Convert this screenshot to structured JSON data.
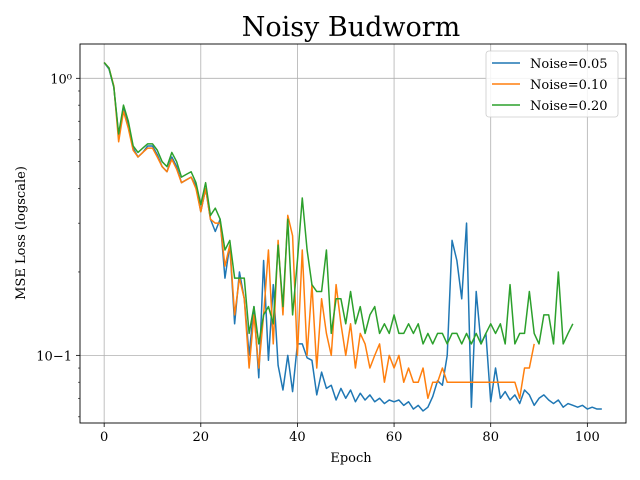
{
  "chart_data": {
    "type": "line",
    "title": "Noisy Budworm",
    "xlabel": "Epoch",
    "ylabel": "MSE Loss (logscale)",
    "yscale": "log",
    "xlim": [
      -5,
      108
    ],
    "ylim": [
      0.057,
      1.33
    ],
    "grid": true,
    "legend_position": "top-right",
    "xticks": [
      0,
      20,
      40,
      60,
      80,
      100
    ],
    "xtick_labels": [
      "0",
      "20",
      "40",
      "60",
      "80",
      "100"
    ],
    "yticks": [
      0.1,
      1.0
    ],
    "ytick_labels": [
      "10−1",
      "10⁰"
    ],
    "series": [
      {
        "name": "Noise=0.05",
        "color": "#1f77b4",
        "values": [
          1.14,
          1.08,
          0.93,
          0.62,
          0.79,
          0.68,
          0.56,
          0.52,
          0.54,
          0.57,
          0.57,
          0.53,
          0.48,
          0.46,
          0.52,
          0.48,
          0.42,
          0.43,
          0.44,
          0.41,
          0.33,
          0.4,
          0.31,
          0.28,
          0.31,
          0.19,
          0.25,
          0.13,
          0.2,
          0.16,
          0.1,
          0.15,
          0.083,
          0.22,
          0.096,
          0.18,
          0.092,
          0.075,
          0.1,
          0.074,
          0.11,
          0.11,
          0.098,
          0.096,
          0.072,
          0.087,
          0.076,
          0.078,
          0.069,
          0.076,
          0.07,
          0.075,
          0.068,
          0.073,
          0.069,
          0.072,
          0.068,
          0.07,
          0.067,
          0.069,
          0.068,
          0.069,
          0.066,
          0.068,
          0.064,
          0.066,
          0.063,
          0.065,
          0.071,
          0.081,
          0.078,
          0.1,
          0.26,
          0.22,
          0.16,
          0.3,
          0.065,
          0.17,
          0.11,
          0.12,
          0.068,
          0.09,
          0.07,
          0.074,
          0.069,
          0.072,
          0.067,
          0.075,
          0.072,
          0.066,
          0.07,
          0.072,
          0.069,
          0.067,
          0.069,
          0.065,
          0.067,
          0.066,
          0.065,
          0.066,
          0.064,
          0.065,
          0.064,
          0.064
        ]
      },
      {
        "name": "Noise=0.10",
        "color": "#ff7f0e",
        "values": [
          1.14,
          1.09,
          0.94,
          0.59,
          0.76,
          0.66,
          0.55,
          0.52,
          0.54,
          0.56,
          0.56,
          0.52,
          0.48,
          0.46,
          0.51,
          0.47,
          0.42,
          0.43,
          0.44,
          0.4,
          0.33,
          0.4,
          0.31,
          0.3,
          0.3,
          0.21,
          0.25,
          0.14,
          0.19,
          0.16,
          0.09,
          0.14,
          0.09,
          0.14,
          0.24,
          0.11,
          0.26,
          0.14,
          0.32,
          0.27,
          0.1,
          0.24,
          0.1,
          0.18,
          0.09,
          0.16,
          0.12,
          0.1,
          0.18,
          0.13,
          0.1,
          0.13,
          0.09,
          0.12,
          0.11,
          0.09,
          0.1,
          0.11,
          0.08,
          0.1,
          0.09,
          0.1,
          0.08,
          0.09,
          0.08,
          0.08,
          0.09,
          0.07,
          0.08,
          0.08,
          0.09,
          0.08,
          0.08,
          0.08,
          0.08,
          0.08,
          0.08,
          0.08,
          0.08,
          0.08,
          0.08,
          0.08,
          0.08,
          0.08,
          0.08,
          0.08,
          0.07,
          0.09,
          0.09,
          0.11
        ]
      },
      {
        "name": "Noise=0.20",
        "color": "#2ca02c",
        "values": [
          1.14,
          1.09,
          0.93,
          0.63,
          0.8,
          0.7,
          0.57,
          0.54,
          0.56,
          0.58,
          0.58,
          0.55,
          0.5,
          0.48,
          0.54,
          0.5,
          0.44,
          0.45,
          0.46,
          0.42,
          0.35,
          0.42,
          0.32,
          0.34,
          0.31,
          0.24,
          0.26,
          0.19,
          0.19,
          0.19,
          0.12,
          0.15,
          0.11,
          0.14,
          0.15,
          0.13,
          0.25,
          0.15,
          0.31,
          0.14,
          0.22,
          0.37,
          0.24,
          0.18,
          0.17,
          0.17,
          0.24,
          0.12,
          0.16,
          0.16,
          0.13,
          0.17,
          0.13,
          0.15,
          0.12,
          0.14,
          0.15,
          0.12,
          0.13,
          0.12,
          0.14,
          0.12,
          0.12,
          0.13,
          0.12,
          0.13,
          0.11,
          0.12,
          0.11,
          0.12,
          0.12,
          0.11,
          0.12,
          0.12,
          0.11,
          0.12,
          0.11,
          0.12,
          0.11,
          0.12,
          0.13,
          0.12,
          0.13,
          0.11,
          0.18,
          0.11,
          0.12,
          0.12,
          0.17,
          0.12,
          0.11,
          0.14,
          0.14,
          0.11,
          0.2,
          0.11,
          0.12,
          0.13
        ]
      }
    ]
  }
}
